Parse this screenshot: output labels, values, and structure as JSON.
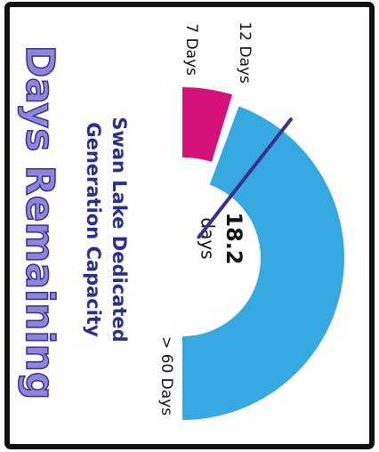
{
  "chart_data": {
    "type": "gauge",
    "title": "Days Remaining",
    "subtitle_lines": [
      "Swan Lake Dedicated",
      "Generation Capacity"
    ],
    "range": [
      7,
      60
    ],
    "ticks": [
      {
        "value": 7,
        "label": "7 Days"
      },
      {
        "value": 12,
        "label": "12 Days"
      },
      {
        "value": 60,
        "label": "> 60 Days"
      }
    ],
    "bands": [
      {
        "from": 7,
        "to": 12,
        "color": "#d6127a"
      },
      {
        "from": 12,
        "to": 60,
        "color": "#36a9e1"
      }
    ],
    "value": 18.2,
    "value_unit": "days",
    "needle_color": "#3b2f8f"
  }
}
